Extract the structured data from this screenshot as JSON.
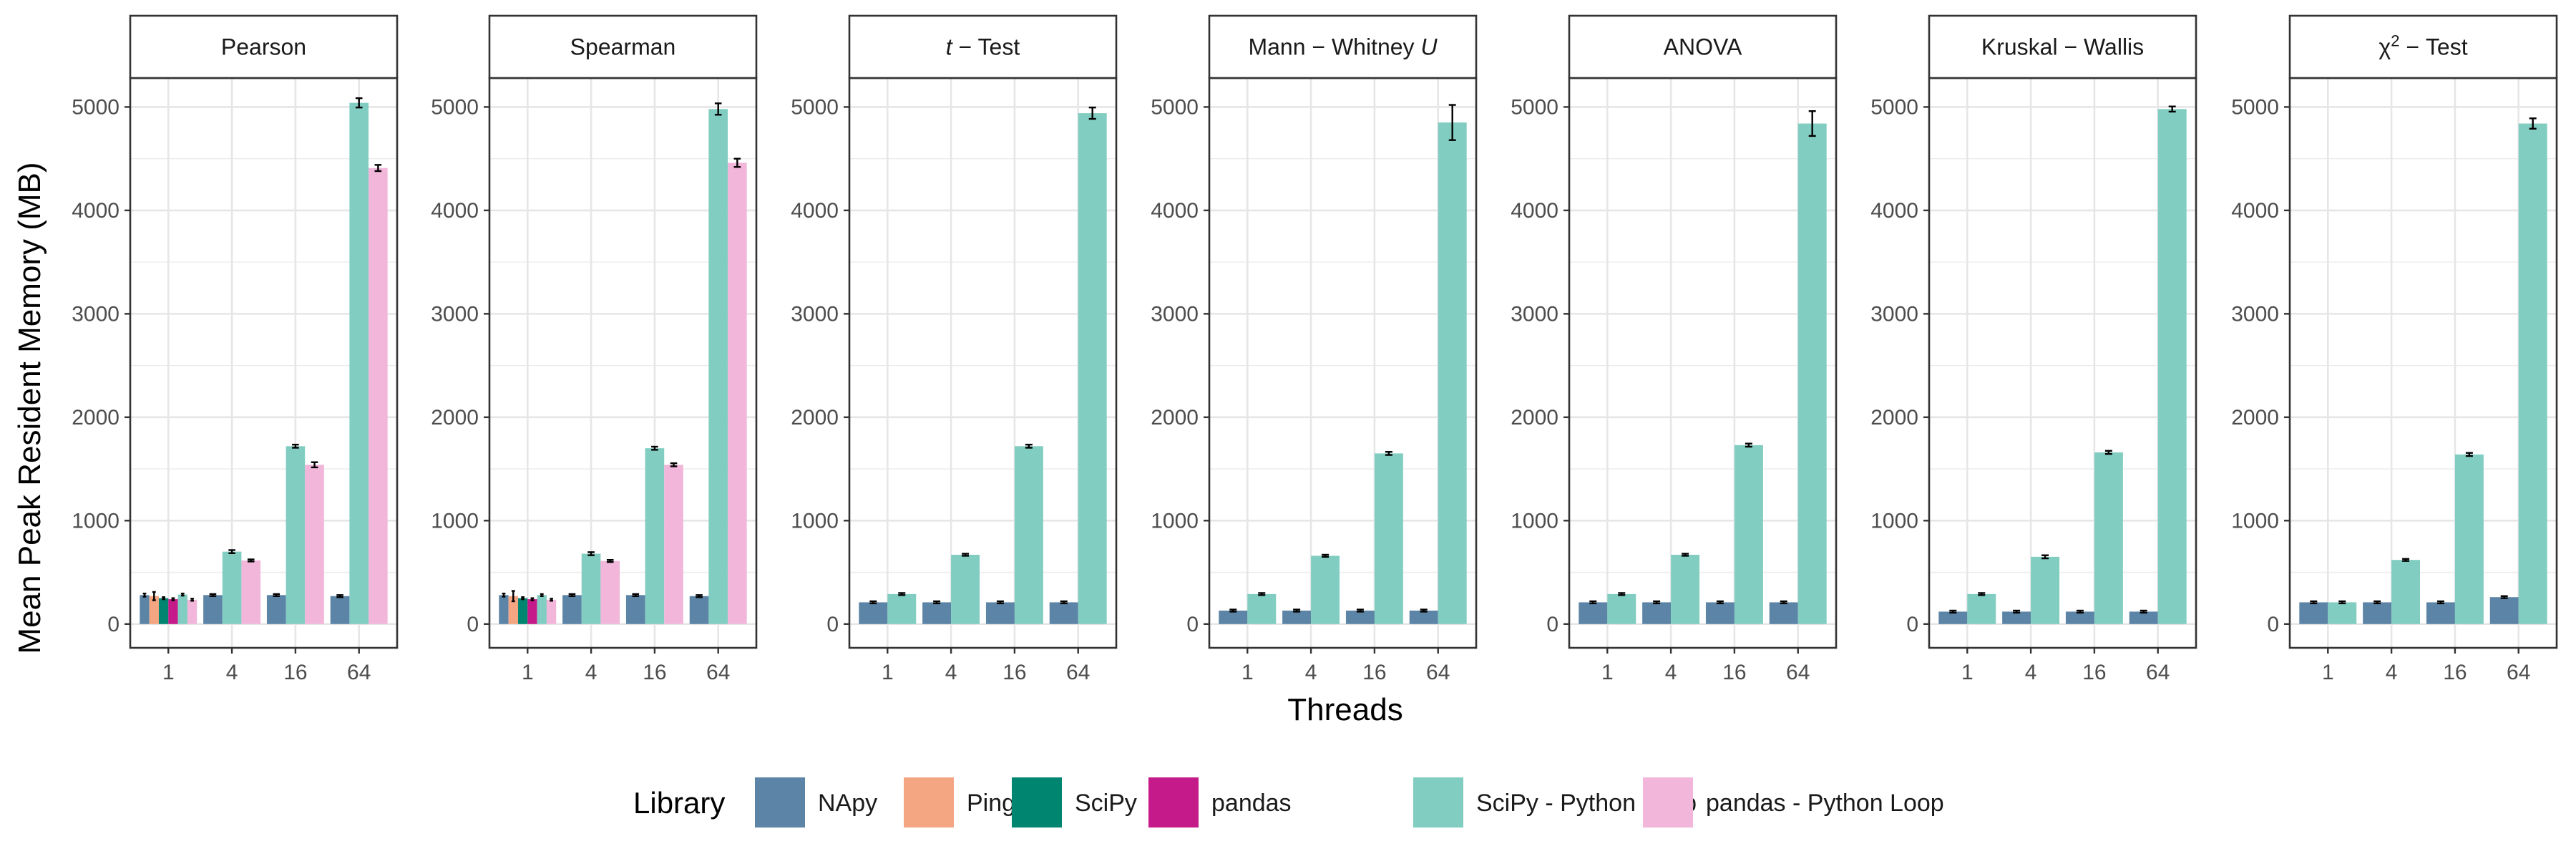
{
  "colors": {
    "NApy": "#5b84a6",
    "Pingouin": "#f4a582",
    "SciPy": "#008571",
    "pandas": "#c51b8a",
    "SciPy - Python Loop": "#81cdc1",
    "pandas - Python Loop": "#f1b6da"
  },
  "chart_data": {
    "type": "bar",
    "xlabel": "Threads",
    "ylabel": "Mean Peak Resident Memory (MB)",
    "legend": {
      "title": "Library",
      "position": "bottom",
      "entries": [
        "NApy",
        "Pingouin",
        "SciPy",
        "pandas",
        "SciPy - Python Loop",
        "pandas - Python Loop"
      ]
    },
    "grid": true,
    "categories": [
      "1",
      "4",
      "16",
      "64"
    ],
    "facets": [
      {
        "title": "Pearson",
        "ylim": [
          -230,
          5280
        ],
        "yticks": [
          0,
          1000,
          2000,
          3000,
          4000,
          5000
        ],
        "bars": [
          {
            "cat": "1",
            "series": "NApy",
            "value": 280,
            "err": 15
          },
          {
            "cat": "1",
            "series": "Pingouin",
            "value": 270,
            "err": 40
          },
          {
            "cat": "1",
            "series": "SciPy",
            "value": 250,
            "err": 10
          },
          {
            "cat": "1",
            "series": "pandas",
            "value": 240,
            "err": 10
          },
          {
            "cat": "1",
            "series": "SciPy - Python Loop",
            "value": 285,
            "err": 10
          },
          {
            "cat": "1",
            "series": "pandas - Python Loop",
            "value": 235,
            "err": 10
          },
          {
            "cat": "4",
            "series": "NApy",
            "value": 280,
            "err": 10
          },
          {
            "cat": "4",
            "series": "SciPy - Python Loop",
            "value": 700,
            "err": 15
          },
          {
            "cat": "4",
            "series": "pandas - Python Loop",
            "value": 615,
            "err": 10
          },
          {
            "cat": "16",
            "series": "NApy",
            "value": 280,
            "err": 10
          },
          {
            "cat": "16",
            "series": "SciPy - Python Loop",
            "value": 1720,
            "err": 15
          },
          {
            "cat": "16",
            "series": "pandas - Python Loop",
            "value": 1540,
            "err": 25
          },
          {
            "cat": "64",
            "series": "NApy",
            "value": 270,
            "err": 10
          },
          {
            "cat": "64",
            "series": "SciPy - Python Loop",
            "value": 5040,
            "err": 45
          },
          {
            "cat": "64",
            "series": "pandas - Python Loop",
            "value": 4410,
            "err": 30
          }
        ]
      },
      {
        "title": "Spearman",
        "ylim": [
          -230,
          5280
        ],
        "yticks": [
          0,
          1000,
          2000,
          3000,
          4000,
          5000
        ],
        "bars": [
          {
            "cat": "1",
            "series": "NApy",
            "value": 280,
            "err": 15
          },
          {
            "cat": "1",
            "series": "Pingouin",
            "value": 270,
            "err": 50
          },
          {
            "cat": "1",
            "series": "SciPy",
            "value": 250,
            "err": 10
          },
          {
            "cat": "1",
            "series": "pandas",
            "value": 240,
            "err": 10
          },
          {
            "cat": "1",
            "series": "SciPy - Python Loop",
            "value": 280,
            "err": 10
          },
          {
            "cat": "1",
            "series": "pandas - Python Loop",
            "value": 235,
            "err": 10
          },
          {
            "cat": "4",
            "series": "NApy",
            "value": 280,
            "err": 10
          },
          {
            "cat": "4",
            "series": "SciPy - Python Loop",
            "value": 680,
            "err": 15
          },
          {
            "cat": "4",
            "series": "pandas - Python Loop",
            "value": 610,
            "err": 10
          },
          {
            "cat": "16",
            "series": "NApy",
            "value": 280,
            "err": 10
          },
          {
            "cat": "16",
            "series": "SciPy - Python Loop",
            "value": 1700,
            "err": 15
          },
          {
            "cat": "16",
            "series": "pandas - Python Loop",
            "value": 1540,
            "err": 15
          },
          {
            "cat": "64",
            "series": "NApy",
            "value": 270,
            "err": 10
          },
          {
            "cat": "64",
            "series": "SciPy - Python Loop",
            "value": 4980,
            "err": 55
          },
          {
            "cat": "64",
            "series": "pandas - Python Loop",
            "value": 4460,
            "err": 40
          }
        ]
      },
      {
        "title": "t-Test",
        "title_parts": [
          {
            "text": "t",
            "italic": true
          },
          {
            "text": " − Test"
          }
        ],
        "ylim": [
          -230,
          5280
        ],
        "yticks": [
          0,
          1000,
          2000,
          3000,
          4000,
          5000
        ],
        "bars": [
          {
            "cat": "1",
            "series": "NApy",
            "value": 210,
            "err": 10
          },
          {
            "cat": "1",
            "series": "SciPy - Python Loop",
            "value": 290,
            "err": 10
          },
          {
            "cat": "4",
            "series": "NApy",
            "value": 210,
            "err": 10
          },
          {
            "cat": "4",
            "series": "SciPy - Python Loop",
            "value": 670,
            "err": 10
          },
          {
            "cat": "16",
            "series": "NApy",
            "value": 210,
            "err": 10
          },
          {
            "cat": "16",
            "series": "SciPy - Python Loop",
            "value": 1720,
            "err": 15
          },
          {
            "cat": "64",
            "series": "NApy",
            "value": 210,
            "err": 10
          },
          {
            "cat": "64",
            "series": "SciPy - Python Loop",
            "value": 4940,
            "err": 55
          }
        ]
      },
      {
        "title": "Mann-Whitney U",
        "title_parts": [
          {
            "text": "Mann − Whitney "
          },
          {
            "text": "U",
            "italic": true
          }
        ],
        "ylim": [
          -230,
          5280
        ],
        "yticks": [
          0,
          1000,
          2000,
          3000,
          4000,
          5000
        ],
        "bars": [
          {
            "cat": "1",
            "series": "NApy",
            "value": 130,
            "err": 10
          },
          {
            "cat": "1",
            "series": "SciPy - Python Loop",
            "value": 290,
            "err": 10
          },
          {
            "cat": "4",
            "series": "NApy",
            "value": 130,
            "err": 10
          },
          {
            "cat": "4",
            "series": "SciPy - Python Loop",
            "value": 660,
            "err": 10
          },
          {
            "cat": "16",
            "series": "NApy",
            "value": 130,
            "err": 10
          },
          {
            "cat": "16",
            "series": "SciPy - Python Loop",
            "value": 1650,
            "err": 15
          },
          {
            "cat": "64",
            "series": "NApy",
            "value": 130,
            "err": 10
          },
          {
            "cat": "64",
            "series": "SciPy - Python Loop",
            "value": 4850,
            "err": 170
          }
        ]
      },
      {
        "title": "ANOVA",
        "ylim": [
          -230,
          5280
        ],
        "yticks": [
          0,
          1000,
          2000,
          3000,
          4000,
          5000
        ],
        "bars": [
          {
            "cat": "1",
            "series": "NApy",
            "value": 210,
            "err": 10
          },
          {
            "cat": "1",
            "series": "SciPy - Python Loop",
            "value": 290,
            "err": 10
          },
          {
            "cat": "4",
            "series": "NApy",
            "value": 210,
            "err": 10
          },
          {
            "cat": "4",
            "series": "SciPy - Python Loop",
            "value": 670,
            "err": 10
          },
          {
            "cat": "16",
            "series": "NApy",
            "value": 210,
            "err": 10
          },
          {
            "cat": "16",
            "series": "SciPy - Python Loop",
            "value": 1730,
            "err": 15
          },
          {
            "cat": "64",
            "series": "NApy",
            "value": 210,
            "err": 10
          },
          {
            "cat": "64",
            "series": "SciPy - Python Loop",
            "value": 4840,
            "err": 120
          }
        ]
      },
      {
        "title": "Kruskal-Wallis",
        "title_parts": [
          {
            "text": "Kruskal − Wallis"
          }
        ],
        "ylim": [
          -230,
          5280
        ],
        "yticks": [
          0,
          1000,
          2000,
          3000,
          4000,
          5000
        ],
        "bars": [
          {
            "cat": "1",
            "series": "NApy",
            "value": 120,
            "err": 10
          },
          {
            "cat": "1",
            "series": "SciPy - Python Loop",
            "value": 290,
            "err": 10
          },
          {
            "cat": "4",
            "series": "NApy",
            "value": 120,
            "err": 10
          },
          {
            "cat": "4",
            "series": "SciPy - Python Loop",
            "value": 650,
            "err": 15
          },
          {
            "cat": "16",
            "series": "NApy",
            "value": 120,
            "err": 10
          },
          {
            "cat": "16",
            "series": "SciPy - Python Loop",
            "value": 1660,
            "err": 15
          },
          {
            "cat": "64",
            "series": "NApy",
            "value": 120,
            "err": 10
          },
          {
            "cat": "64",
            "series": "SciPy - Python Loop",
            "value": 4980,
            "err": 25
          }
        ]
      },
      {
        "title": "χ²-Test",
        "title_parts": [
          {
            "text": "χ"
          },
          {
            "text": "2",
            "sup": true
          },
          {
            "text": " − Test"
          }
        ],
        "ylim": [
          -230,
          5280
        ],
        "yticks": [
          0,
          1000,
          2000,
          3000,
          4000,
          5000
        ],
        "bars": [
          {
            "cat": "1",
            "series": "NApy",
            "value": 210,
            "err": 10
          },
          {
            "cat": "1",
            "series": "SciPy - Python Loop",
            "value": 210,
            "err": 10
          },
          {
            "cat": "4",
            "series": "NApy",
            "value": 210,
            "err": 10
          },
          {
            "cat": "4",
            "series": "SciPy - Python Loop",
            "value": 620,
            "err": 10
          },
          {
            "cat": "16",
            "series": "NApy",
            "value": 210,
            "err": 10
          },
          {
            "cat": "16",
            "series": "SciPy - Python Loop",
            "value": 1640,
            "err": 15
          },
          {
            "cat": "64",
            "series": "NApy",
            "value": 260,
            "err": 10
          },
          {
            "cat": "64",
            "series": "SciPy - Python Loop",
            "value": 4840,
            "err": 50
          }
        ]
      }
    ]
  }
}
